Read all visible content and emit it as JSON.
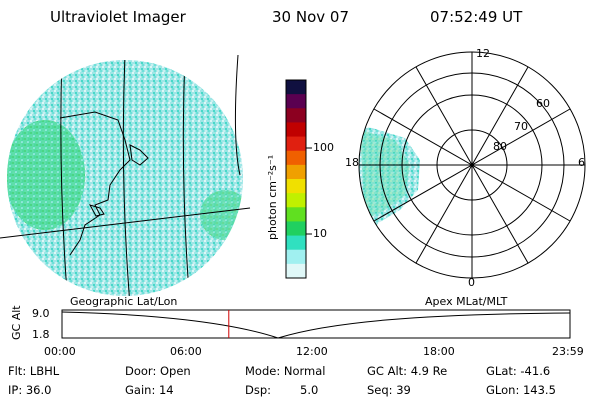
{
  "header": {
    "instrument": "Ultraviolet Imager",
    "date": "30 Nov 07",
    "time": "07:52:49 UT"
  },
  "colorbar": {
    "label": "photon cm⁻²s⁻¹",
    "ticks": [
      "100",
      "10"
    ],
    "colors": [
      "#101040",
      "#5a0050",
      "#8c0020",
      "#c00000",
      "#e02010",
      "#f06000",
      "#f0a000",
      "#f0e000",
      "#c0f000",
      "#60e020",
      "#20d060",
      "#30e0c0",
      "#a0f0f0",
      "#e0f8f8"
    ]
  },
  "polar": {
    "mlt_labels": {
      "top": "12",
      "left": "18",
      "right": "6",
      "bottom": "0"
    },
    "lat_labels": [
      "60",
      "70",
      "80"
    ]
  },
  "map_captions": {
    "left": "Geographic Lat/Lon",
    "right": "Apex MLat/MLT"
  },
  "altitude_plot": {
    "ylabel": "GC Alt",
    "yticks": [
      "9.0",
      "1.8"
    ],
    "xticks": [
      "00:00",
      "06:00",
      "12:00",
      "18:00",
      "23:59"
    ],
    "current_time_hours": 7.88
  },
  "status": {
    "flt": "Flt: LBHL",
    "ip": "IP: 36.0",
    "door": "Door: Open",
    "gain": "Gain: 14",
    "mode": "Mode: Normal",
    "dsp_label": "Dsp:",
    "dsp_value": "5.0",
    "gc_alt": "GC Alt: 4.9 Re",
    "seq": "Seq: 39",
    "glat": "GLat: -41.6",
    "glon": "GLon: 143.5"
  }
}
